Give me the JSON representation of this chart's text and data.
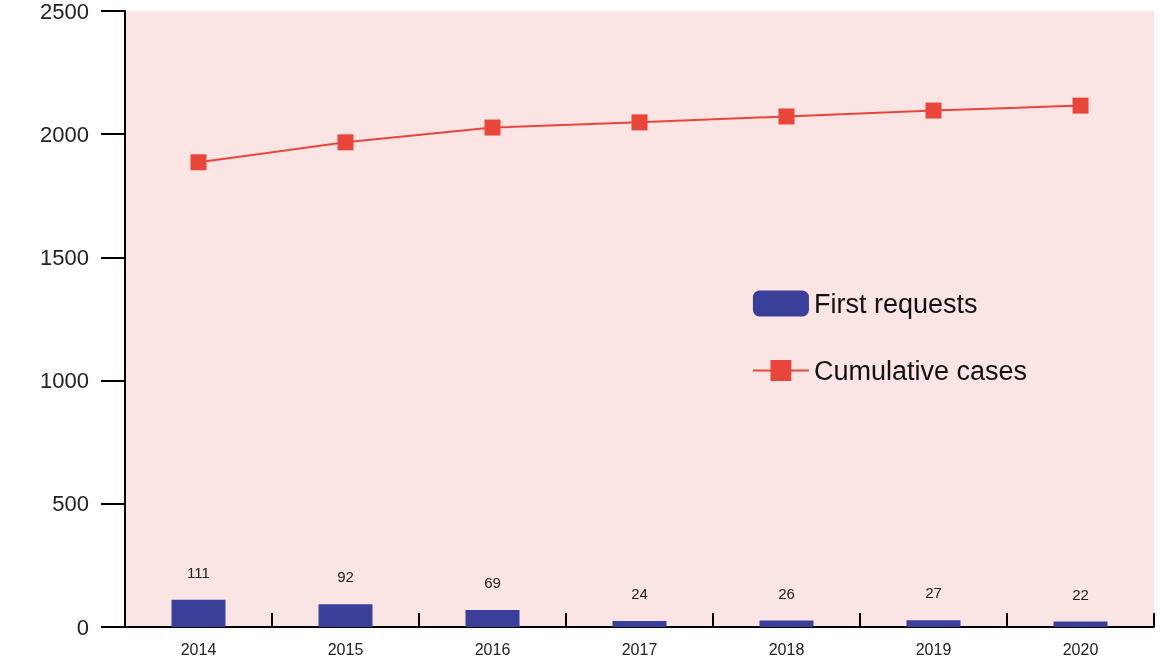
{
  "chart_data": {
    "type": "bar",
    "categories": [
      "2014",
      "2015",
      "2016",
      "2017",
      "2018",
      "2019",
      "2020"
    ],
    "series": [
      {
        "name": "First requests",
        "color": "#3a3f9a",
        "values": [
          111,
          92,
          69,
          24,
          26,
          27,
          22
        ],
        "value_labels": [
          "111",
          "92",
          "69",
          "24",
          "26",
          "27",
          "22"
        ]
      },
      {
        "name": "Cumulative cases",
        "type": "line",
        "color": "#e8463a",
        "marker": "square",
        "values": [
          1886,
          1967,
          2027,
          2048,
          2072,
          2096,
          2116
        ]
      }
    ],
    "ylim": [
      0,
      2500
    ],
    "yticks": [
      0,
      500,
      1000,
      1500,
      2000,
      2500
    ],
    "grid": false,
    "legend": "right"
  }
}
